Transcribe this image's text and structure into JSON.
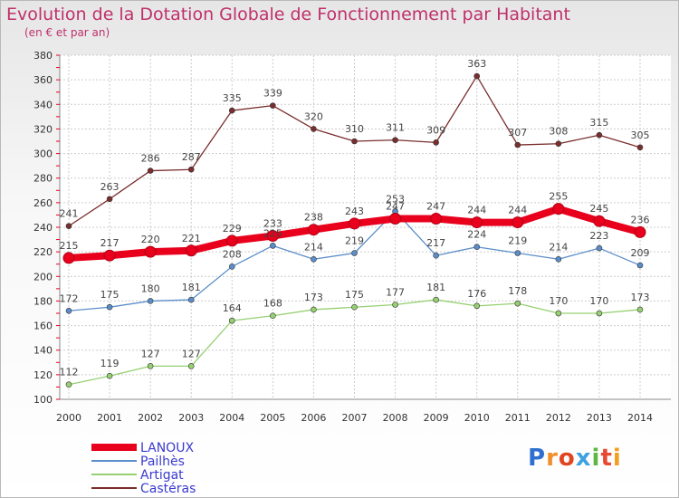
{
  "title": "Evolution de la Dotation Globale de Fonctionnement par Habitant",
  "subtitle": "(en € et par an)",
  "logo": {
    "text": "Proxiti",
    "colors": [
      "#2f6fd0",
      "#f0902a",
      "#e0451f",
      "#3fa2e0",
      "#5fb640",
      "#e64a32",
      "#f0a020"
    ]
  },
  "chart_data": {
    "type": "line",
    "x": [
      "2000",
      "2001",
      "2002",
      "2003",
      "2004",
      "2005",
      "2006",
      "2007",
      "2008",
      "2009",
      "2010",
      "2011",
      "2012",
      "2013",
      "2014"
    ],
    "ylim": [
      100,
      380
    ],
    "yticks": [
      100,
      120,
      140,
      160,
      180,
      200,
      220,
      240,
      260,
      280,
      300,
      320,
      340,
      360,
      380
    ],
    "grid": true,
    "legend": "bottom-left",
    "series": [
      {
        "name": "LANOUX",
        "color": "#e8001c",
        "values": [
          215,
          217,
          220,
          221,
          229,
          233,
          238,
          243,
          247,
          247,
          244,
          244,
          255,
          245,
          236
        ]
      },
      {
        "name": "Pailhès",
        "color": "#5b8ec9",
        "values": [
          172,
          175,
          180,
          181,
          208,
          225,
          214,
          219,
          253,
          217,
          224,
          219,
          214,
          223,
          209
        ]
      },
      {
        "name": "Artigat",
        "color": "#96d072",
        "values": [
          112,
          119,
          127,
          127,
          164,
          168,
          173,
          175,
          177,
          181,
          176,
          178,
          170,
          170,
          173
        ]
      },
      {
        "name": "Castéras",
        "color": "#7a2e2e",
        "values": [
          241,
          263,
          286,
          287,
          335,
          339,
          320,
          310,
          311,
          309,
          363,
          307,
          308,
          315,
          305
        ]
      }
    ]
  }
}
